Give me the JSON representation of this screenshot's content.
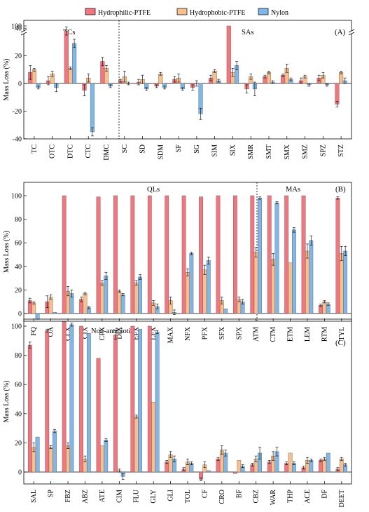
{
  "legend": {
    "entries": [
      {
        "label": "Hydrophilic-PTFE",
        "color": "#f4757e"
      },
      {
        "label": "Hydrophobic-PTFE",
        "color": "#f9c08e"
      },
      {
        "label": "Nylon",
        "color": "#7fb7ea"
      }
    ]
  },
  "colors": {
    "hydrophilic": "#f4757e",
    "hydrophobic": "#f9c08e",
    "nylon": "#7fb7ea",
    "border": "#000000"
  },
  "chart_data": [
    {
      "type": "bar",
      "panel": "(A)",
      "ylabel": "Mass Loss (%)",
      "axis_break": true,
      "ylim": [
        -50,
        100
      ],
      "yticks": [
        -40,
        -20,
        0,
        20,
        40,
        100
      ],
      "groups": [
        {
          "label": "TCs",
          "span": [
            0,
            4
          ]
        },
        {
          "label": "SAs",
          "span": [
            5,
            17
          ]
        }
      ],
      "grid": false,
      "legend_position": "top",
      "categories": [
        "TC",
        "OTC",
        "DTC",
        "CTC",
        "DMC",
        "SC",
        "SD",
        "SDM",
        "SF",
        "SG",
        "SIM",
        "SIX",
        "SMR",
        "SMT",
        "SMX",
        "SMZ",
        "SPZ",
        "STZ"
      ],
      "series": [
        {
          "name": "Hydrophilic-PTFE",
          "values": [
            8,
            2,
            38,
            -5,
            16,
            2,
            1,
            -2,
            3,
            -3,
            4,
            100,
            -4,
            5,
            6,
            2,
            4,
            -15
          ],
          "errors": [
            5,
            3,
            3,
            4,
            3,
            1,
            2,
            1,
            2,
            2,
            2,
            0,
            3,
            1,
            1,
            2,
            2,
            2
          ]
        },
        {
          "name": "Hydrophobic-PTFE",
          "values": [
            10,
            7,
            11,
            4,
            11,
            5,
            3,
            7,
            4,
            0,
            9,
            8,
            5,
            8,
            11,
            5,
            6,
            8
          ],
          "errors": [
            1,
            2,
            1,
            3,
            2,
            4,
            3,
            1,
            3,
            2,
            1,
            3,
            2,
            1,
            3,
            1,
            2,
            1
          ]
        },
        {
          "name": "Nylon",
          "values": [
            -3,
            -3,
            29,
            -35,
            -2,
            0,
            -4,
            -3,
            -4,
            -22,
            2,
            13,
            -4,
            1,
            3,
            -1,
            -1,
            2
          ],
          "errors": [
            1,
            3,
            3,
            3,
            1,
            1,
            1,
            1,
            1,
            4,
            1,
            3,
            5,
            1,
            1,
            1,
            1,
            2
          ]
        }
      ]
    },
    {
      "type": "bar",
      "panel": "(B)",
      "ylabel": "Mass Loss (%)",
      "ylim": [
        -10,
        105
      ],
      "yticks": [
        0,
        20,
        40,
        60,
        80,
        100
      ],
      "groups": [
        {
          "label": "QLs",
          "span": [
            0,
            11
          ]
        },
        {
          "label": "MAs",
          "span": [
            12,
            17
          ]
        }
      ],
      "grid": false,
      "categories": [
        "FQ",
        "OA",
        "CLX",
        "CIX",
        "CPX",
        "DIX",
        "EFX",
        "LFX",
        "MAX",
        "NFX",
        "PFX",
        "SFX",
        "SPX",
        "ATM",
        "CTM",
        "ETM",
        "LEM",
        "RTM",
        "TYL"
      ],
      "series": [
        {
          "name": "Hydrophilic-PTFE",
          "values": [
            11,
            10,
            100,
            12,
            99,
            100,
            100,
            100,
            100,
            100,
            99,
            100,
            100,
            100,
            100,
            100,
            100,
            7,
            98
          ],
          "errors": [
            2,
            5,
            0,
            2,
            0,
            0,
            0,
            0,
            0,
            0,
            0,
            0,
            0,
            0,
            0,
            0,
            0,
            1,
            1
          ]
        },
        {
          "name": "Hydrophobic-PTFE",
          "values": [
            9,
            14,
            19,
            17,
            26,
            19,
            26,
            9,
            11,
            35,
            37,
            11,
            12,
            52,
            46,
            43,
            53,
            10,
            51
          ],
          "errors": [
            1,
            2,
            4,
            1,
            2,
            1,
            2,
            2,
            3,
            3,
            4,
            3,
            2,
            4,
            5,
            0,
            6,
            1,
            6
          ]
        },
        {
          "name": "Nylon",
          "values": [
            -5,
            1,
            17,
            5,
            32,
            16,
            31,
            6,
            1,
            51,
            45,
            4,
            10,
            98,
            94,
            71,
            62,
            8,
            53
          ],
          "errors": [
            0,
            0,
            3,
            1,
            3,
            1,
            2,
            2,
            2,
            1,
            3,
            0,
            2,
            1,
            1,
            2,
            4,
            1,
            4
          ]
        }
      ]
    },
    {
      "type": "bar",
      "panel": "(C)",
      "ylabel": "Mass Loss (%)",
      "ylim": [
        -10,
        105
      ],
      "yticks": [
        0,
        20,
        40,
        60,
        80,
        100
      ],
      "groups": [
        {
          "label": "Non-antibiotic",
          "span": [
            0,
            20
          ]
        }
      ],
      "grid": false,
      "categories": [
        "SAL",
        "SP",
        "FBZ",
        "ABZ",
        "ATE",
        "CIM",
        "FLU",
        "GLY",
        "GLI",
        "TOL",
        "CF",
        "CRO",
        "BF",
        "CBZ",
        "WAR",
        "THP",
        "ACE",
        "DF",
        "DEET"
      ],
      "series": [
        {
          "name": "Hydrophilic-PTFE",
          "values": [
            87,
            97,
            103,
            100,
            78,
            94,
            100,
            100,
            7,
            2,
            -5,
            9,
            -1,
            5,
            7,
            6,
            3,
            8,
            2
          ],
          "errors": [
            2,
            1,
            0,
            0,
            0,
            3,
            0,
            0,
            1,
            1,
            1,
            1,
            0,
            1,
            1,
            1,
            1,
            1,
            1
          ]
        },
        {
          "name": "Hydrophobic-PTFE",
          "values": [
            17,
            17,
            18,
            9,
            18,
            1,
            38,
            48,
            12,
            7,
            5,
            15,
            8,
            9,
            11,
            13,
            8,
            9,
            9
          ],
          "errors": [
            3,
            1,
            2,
            2,
            0,
            1,
            1,
            0,
            2,
            2,
            2,
            3,
            0,
            2,
            3,
            0,
            2,
            1,
            1
          ]
        },
        {
          "name": "Nylon",
          "values": [
            24,
            28,
            101,
            95,
            22,
            -3,
            98,
            96,
            9,
            6,
            1,
            13,
            4,
            13,
            14,
            6,
            8,
            13,
            5
          ],
          "errors": [
            0,
            1,
            1,
            0,
            1,
            2,
            0,
            1,
            2,
            1,
            0,
            2,
            1,
            4,
            3,
            1,
            1,
            0,
            1
          ]
        }
      ]
    }
  ]
}
